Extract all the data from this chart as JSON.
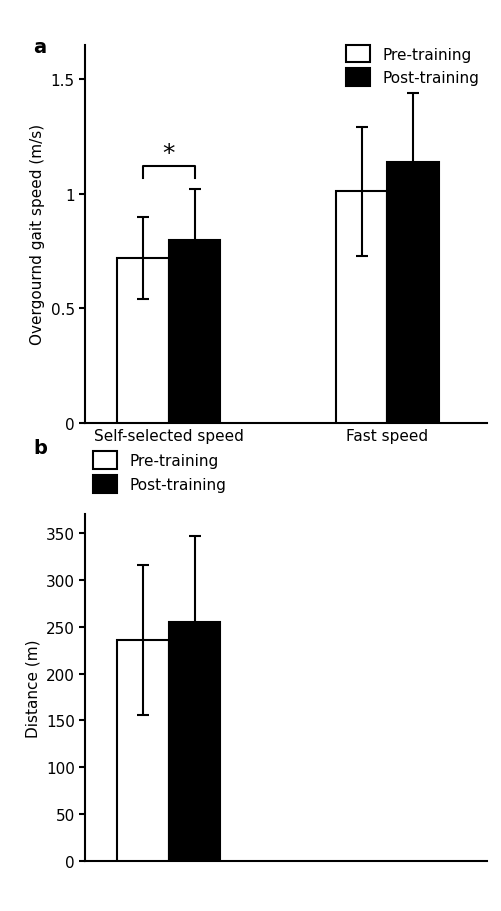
{
  "panel_a": {
    "panel_label": "a",
    "ylabel": "Overgournd gait speed (m/s)",
    "ylim": [
      0,
      1.65
    ],
    "yticks": [
      0,
      0.5,
      1.0,
      1.5
    ],
    "ytick_labels": [
      "0",
      "0.5",
      "1",
      "1.5"
    ],
    "groups": [
      "Self-selected speed",
      "Fast speed"
    ],
    "bars_pre": [
      0.72,
      1.01
    ],
    "bars_post": [
      0.8,
      1.14
    ],
    "errors_pre": [
      0.18,
      0.28
    ],
    "errors_post": [
      0.22,
      0.3
    ],
    "sig_between_group": 0,
    "sig_y": 1.07,
    "legend_labels": [
      "Pre-training",
      "Post-training"
    ],
    "bar_width": 0.32,
    "group_centers": [
      0.82,
      2.18
    ],
    "xlim": [
      0.3,
      2.8
    ]
  },
  "panel_b": {
    "panel_label": "b",
    "ylabel": "Distance (m)",
    "ylim": [
      0,
      370
    ],
    "yticks": [
      0,
      50,
      100,
      150,
      200,
      250,
      300,
      350
    ],
    "ytick_labels": [
      "0",
      "50",
      "100",
      "150",
      "200",
      "250",
      "300",
      "350"
    ],
    "bars_pre": [
      236
    ],
    "bars_post": [
      255
    ],
    "errors_pre": [
      80
    ],
    "errors_post": [
      92
    ],
    "legend_labels": [
      "Pre-training",
      "Post-training"
    ],
    "bar_width": 0.32,
    "group_centers": [
      0.82
    ],
    "xlim": [
      0.3,
      2.8
    ]
  },
  "bar_edge_color": "#000000",
  "error_color": "#000000",
  "background_color": "#ffffff",
  "label_fontsize": 11,
  "tick_fontsize": 11,
  "legend_fontsize": 11
}
